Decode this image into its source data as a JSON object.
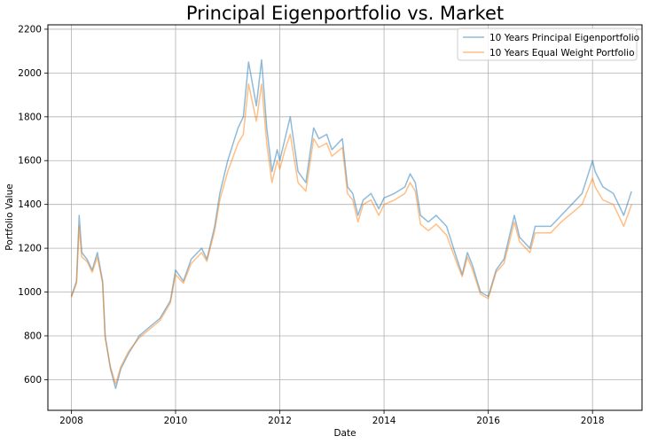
{
  "chart_data": {
    "type": "line",
    "title": "Principal Eigenportfolio vs. Market",
    "xlabel": "Date",
    "ylabel": "Portfolio Value",
    "xlim": [
      2007.55,
      2018.95
    ],
    "ylim": [
      460,
      2220
    ],
    "x_ticks": [
      2008,
      2010,
      2012,
      2014,
      2016,
      2018
    ],
    "x_tick_labels": [
      "2008",
      "2010",
      "2012",
      "2014",
      "2016",
      "2018"
    ],
    "y_ticks": [
      600,
      800,
      1000,
      1200,
      1400,
      1600,
      1800,
      2000,
      2200
    ],
    "y_tick_labels": [
      "600",
      "800",
      "1000",
      "1200",
      "1400",
      "1600",
      "1800",
      "2000",
      "2200"
    ],
    "grid": true,
    "legend_position": "top-right",
    "series": [
      {
        "name": "10 Years Principal Eigenportfolio",
        "color": "#1f77b4",
        "x": [
          2008.0,
          2008.1,
          2008.15,
          2008.2,
          2008.3,
          2008.4,
          2008.5,
          2008.6,
          2008.65,
          2008.75,
          2008.85,
          2008.95,
          2009.1,
          2009.2,
          2009.3,
          2009.5,
          2009.7,
          2009.9,
          2010.0,
          2010.15,
          2010.3,
          2010.5,
          2010.6,
          2010.75,
          2010.85,
          2011.0,
          2011.2,
          2011.3,
          2011.4,
          2011.55,
          2011.65,
          2011.75,
          2011.85,
          2011.95,
          2012.0,
          2012.1,
          2012.2,
          2012.35,
          2012.5,
          2012.65,
          2012.75,
          2012.9,
          2013.0,
          2013.2,
          2013.3,
          2013.4,
          2013.5,
          2013.6,
          2013.75,
          2013.9,
          2014.0,
          2014.2,
          2014.4,
          2014.5,
          2014.6,
          2014.7,
          2014.85,
          2015.0,
          2015.2,
          2015.4,
          2015.5,
          2015.6,
          2015.7,
          2015.85,
          2016.0,
          2016.15,
          2016.3,
          2016.5,
          2016.6,
          2016.8,
          2016.9,
          2017.0,
          2017.2,
          2017.4,
          2017.6,
          2017.8,
          2018.0,
          2018.05,
          2018.2,
          2018.4,
          2018.6,
          2018.75
        ],
        "y": [
          980,
          1050,
          1350,
          1180,
          1150,
          1100,
          1180,
          1050,
          800,
          650,
          560,
          650,
          720,
          760,
          800,
          840,
          880,
          960,
          1100,
          1050,
          1150,
          1200,
          1150,
          1300,
          1450,
          1600,
          1750,
          1800,
          2050,
          1850,
          2060,
          1750,
          1550,
          1650,
          1600,
          1700,
          1800,
          1550,
          1500,
          1750,
          1700,
          1720,
          1650,
          1700,
          1480,
          1450,
          1350,
          1420,
          1450,
          1380,
          1430,
          1450,
          1480,
          1540,
          1500,
          1350,
          1320,
          1350,
          1300,
          1150,
          1080,
          1180,
          1120,
          1000,
          980,
          1100,
          1150,
          1350,
          1250,
          1200,
          1300,
          1300,
          1300,
          1350,
          1400,
          1450,
          1600,
          1550,
          1480,
          1450,
          1350,
          1460
        ]
      },
      {
        "name": "10 Years Equal Weight Portfolio",
        "color": "#ff7f0e",
        "x": [
          2008.0,
          2008.1,
          2008.15,
          2008.2,
          2008.3,
          2008.4,
          2008.5,
          2008.6,
          2008.65,
          2008.75,
          2008.85,
          2008.95,
          2009.1,
          2009.2,
          2009.3,
          2009.5,
          2009.7,
          2009.9,
          2010.0,
          2010.15,
          2010.3,
          2010.5,
          2010.6,
          2010.75,
          2010.85,
          2011.0,
          2011.2,
          2011.3,
          2011.4,
          2011.55,
          2011.65,
          2011.75,
          2011.85,
          2011.95,
          2012.0,
          2012.1,
          2012.2,
          2012.35,
          2012.5,
          2012.65,
          2012.75,
          2012.9,
          2013.0,
          2013.2,
          2013.3,
          2013.4,
          2013.5,
          2013.6,
          2013.75,
          2013.9,
          2014.0,
          2014.2,
          2014.4,
          2014.5,
          2014.6,
          2014.7,
          2014.85,
          2015.0,
          2015.2,
          2015.4,
          2015.5,
          2015.6,
          2015.7,
          2015.85,
          2016.0,
          2016.15,
          2016.3,
          2016.5,
          2016.6,
          2016.8,
          2016.9,
          2017.0,
          2017.2,
          2017.4,
          2017.6,
          2017.8,
          2018.0,
          2018.05,
          2018.2,
          2018.4,
          2018.6,
          2018.75
        ],
        "y": [
          975,
          1040,
          1300,
          1160,
          1140,
          1090,
          1160,
          1040,
          790,
          660,
          580,
          660,
          730,
          760,
          790,
          830,
          870,
          950,
          1080,
          1040,
          1130,
          1180,
          1140,
          1280,
          1420,
          1550,
          1680,
          1720,
          1950,
          1780,
          1950,
          1680,
          1500,
          1600,
          1560,
          1650,
          1720,
          1500,
          1460,
          1700,
          1660,
          1680,
          1620,
          1660,
          1450,
          1420,
          1320,
          1400,
          1420,
          1350,
          1400,
          1420,
          1450,
          1500,
          1460,
          1310,
          1280,
          1310,
          1260,
          1130,
          1070,
          1160,
          1100,
          990,
          970,
          1090,
          1130,
          1320,
          1230,
          1180,
          1270,
          1270,
          1270,
          1320,
          1360,
          1400,
          1520,
          1480,
          1420,
          1400,
          1300,
          1400
        ]
      }
    ]
  }
}
